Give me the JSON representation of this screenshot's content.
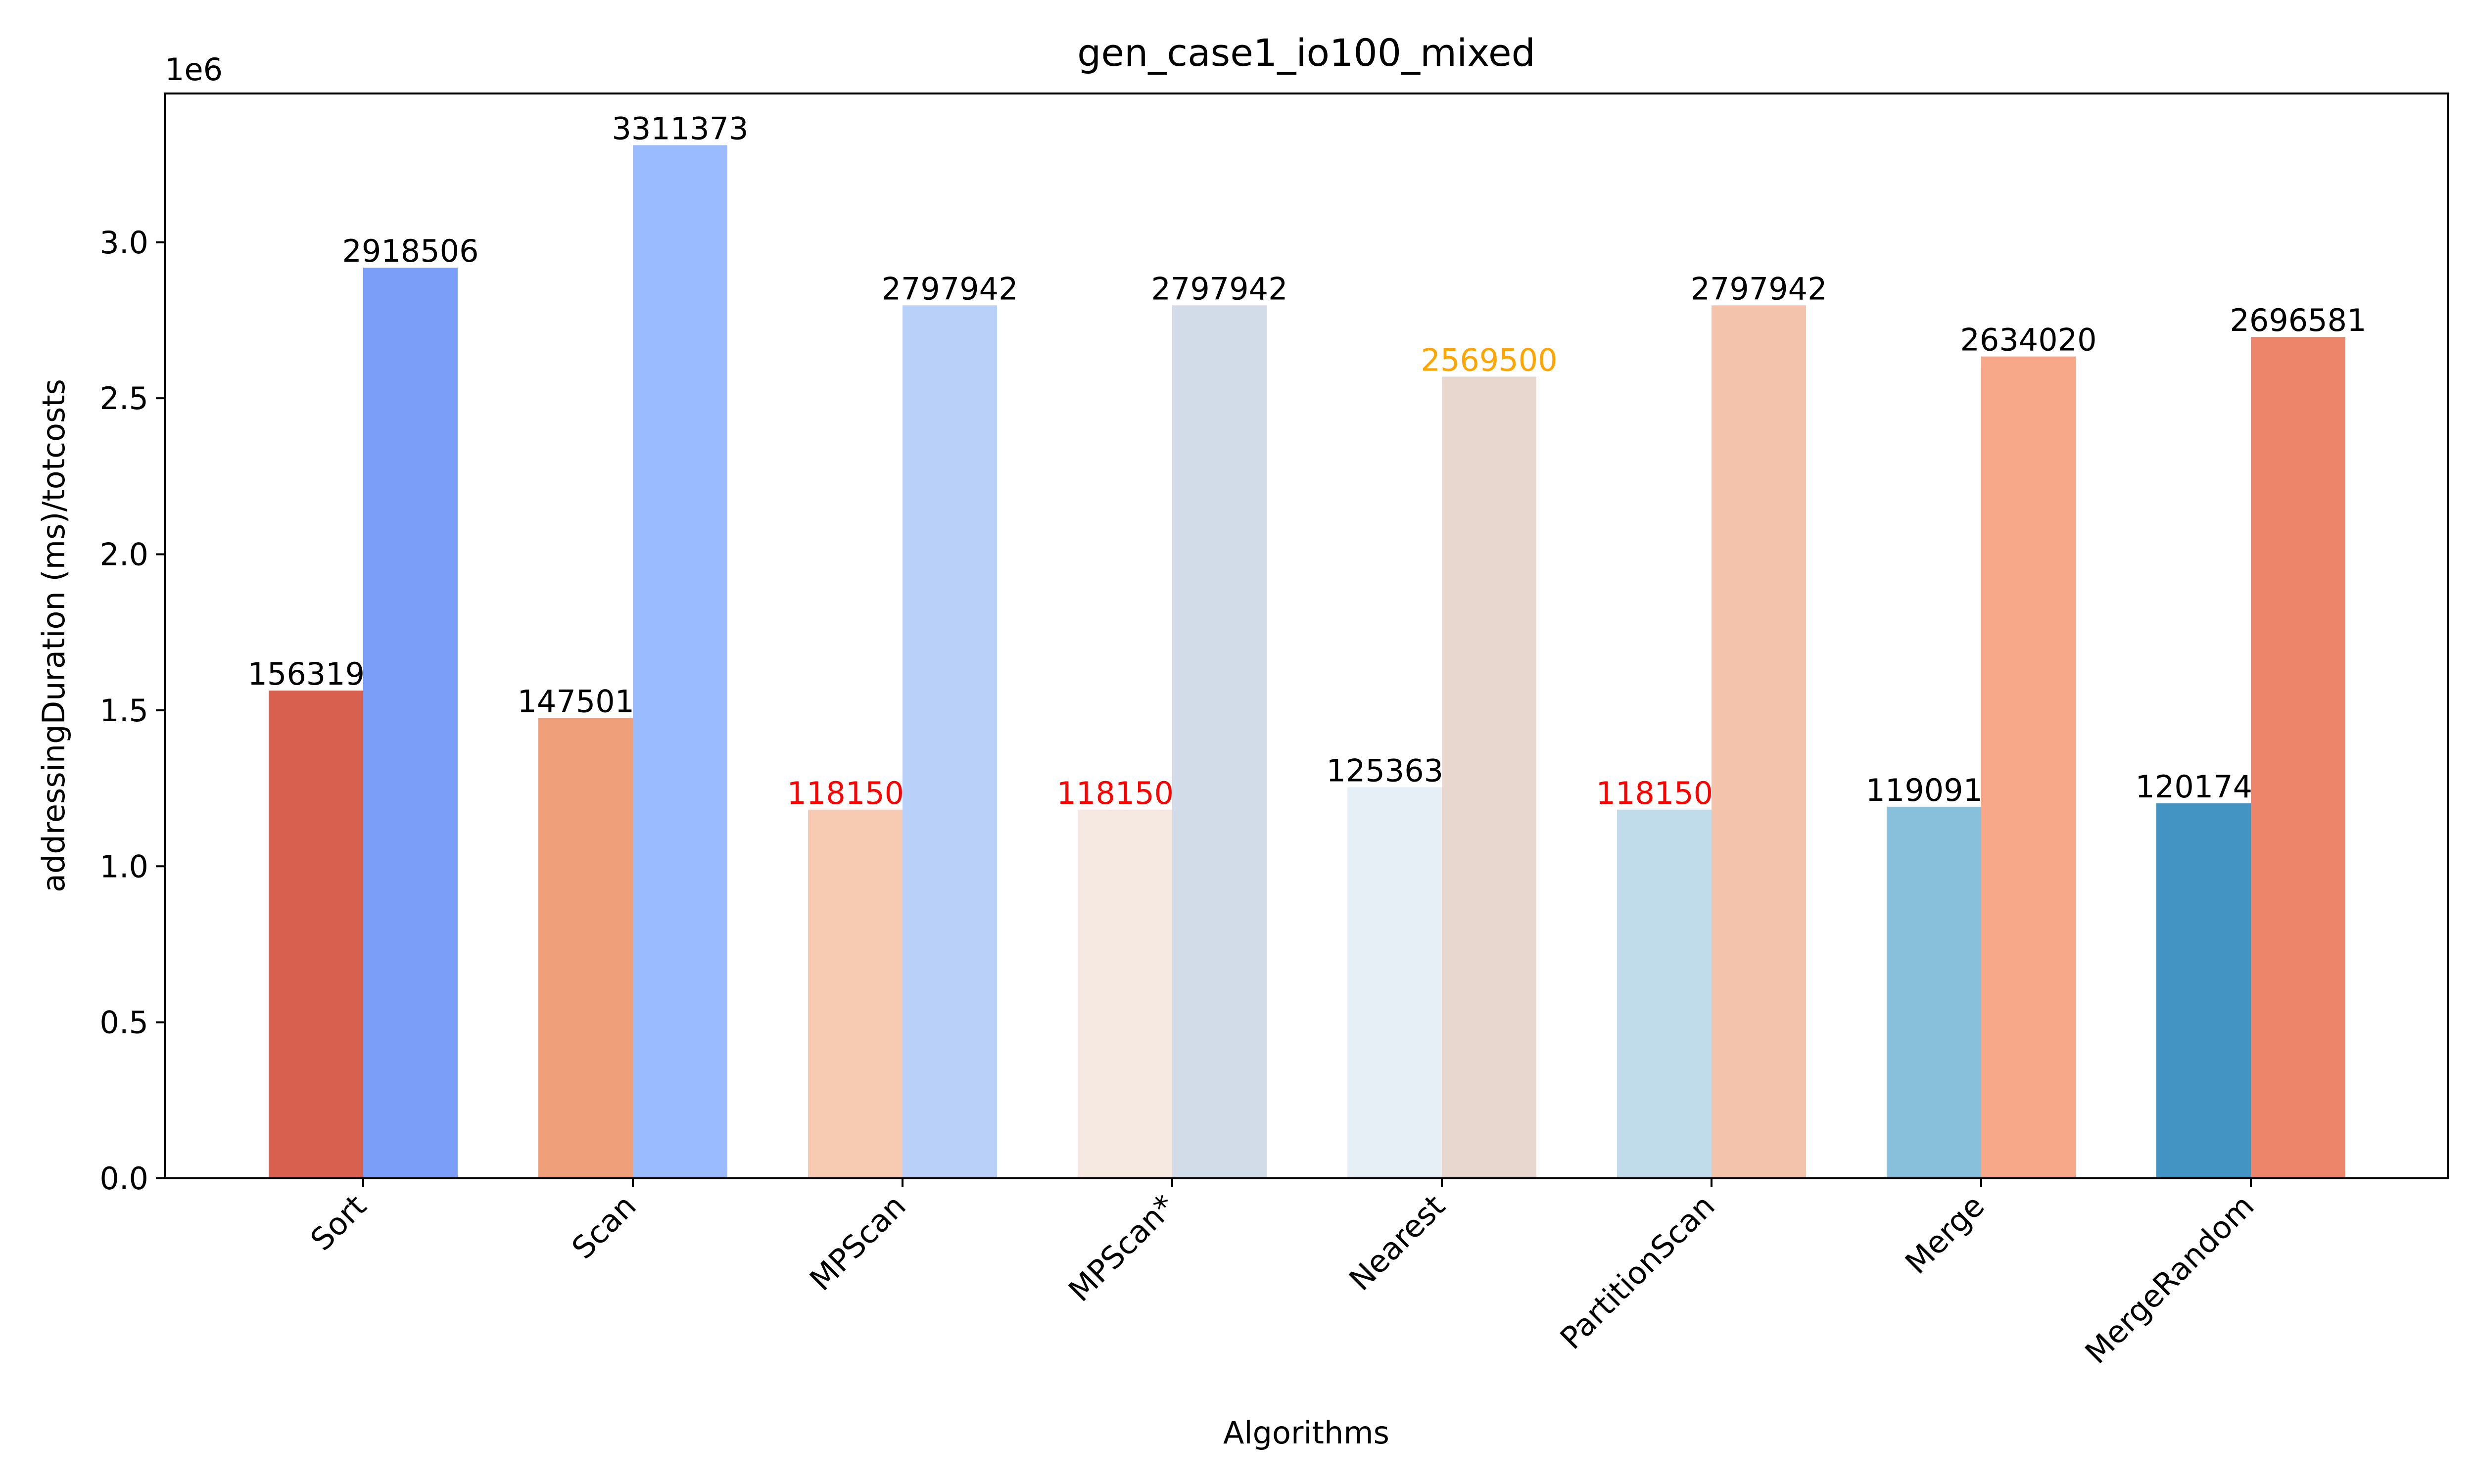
{
  "chart_data": {
    "type": "bar",
    "title": "gen_case1_io100_mixed",
    "xlabel": "Algorithms",
    "ylabel": "addressingDuration (ms)/totcosts",
    "y_offset_label": "1e6",
    "ylim": [
      0,
      3476942
    ],
    "yticks": [
      0,
      500000,
      1000000,
      1500000,
      2000000,
      2500000,
      3000000
    ],
    "ytick_labels": [
      "0.0",
      "0.5",
      "1.0",
      "1.5",
      "2.0",
      "2.5",
      "3.0"
    ],
    "grid": false,
    "legend": "none",
    "categories": [
      "Sort",
      "Scan",
      "MPScan",
      "MPScan*",
      "Nearest",
      "PartitionScan",
      "Merge",
      "MergeRandom"
    ],
    "series": [
      {
        "values": [
          1563194,
          1475015,
          1181502,
          1181502,
          1253630,
          1181502,
          1190911,
          1201742
        ],
        "colors": [
          "#d8604f",
          "#f09f7b",
          "#f7cbb2",
          "#f6e9e2",
          "#e6eff5",
          "#c0dcea",
          "#88bfda",
          "#4393c3"
        ],
        "label_colors": [
          "#000000",
          "#000000",
          "#ff0000",
          "#ff0000",
          "#000000",
          "#ff0000",
          "#000000",
          "#000000"
        ]
      },
      {
        "values": [
          2918506,
          3311373,
          2797942,
          2797942,
          2569500,
          2797942,
          2634020,
          2696581
        ],
        "colors": [
          "#7b9ff9",
          "#9abbff",
          "#b9d0f9",
          "#d2dbe8",
          "#e7d7cf",
          "#f3c4ab",
          "#f6a889",
          "#ed856b"
        ],
        "label_colors": [
          "#000000",
          "#000000",
          "#000000",
          "#000000",
          "#ffa500",
          "#000000",
          "#000000",
          "#000000"
        ]
      }
    ]
  }
}
